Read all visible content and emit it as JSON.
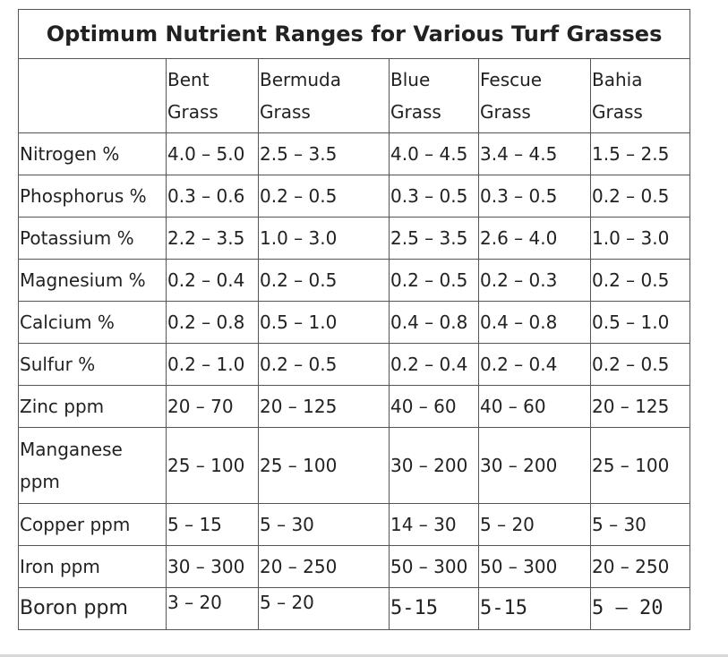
{
  "table": {
    "title": "Optimum Nutrient Ranges for Various Turf Grasses",
    "columns": [
      {
        "line1": "Bent",
        "line2": "Grass"
      },
      {
        "line1": "Bermuda",
        "line2": "Grass"
      },
      {
        "line1": "Blue",
        "line2": "Grass"
      },
      {
        "line1": "Fescue",
        "line2": "Grass"
      },
      {
        "line1": "Bahia",
        "line2": "Grass"
      }
    ],
    "rows": [
      {
        "label": "Nitrogen %",
        "values": [
          "4.0 – 5.0",
          "2.5 – 3.5",
          "4.0 – 4.5",
          "3.4 – 4.5",
          "1.5 – 2.5"
        ]
      },
      {
        "label": "Phosphorus %",
        "values": [
          "0.3 – 0.6",
          "0.2 – 0.5",
          "0.3 – 0.5",
          "0.3 – 0.5",
          "0.2 – 0.5"
        ]
      },
      {
        "label": "Potassium %",
        "values": [
          "2.2 – 3.5",
          "1.0 – 3.0",
          "2.5 – 3.5",
          "2.6 – 4.0",
          "1.0 – 3.0"
        ]
      },
      {
        "label": "Magnesium %",
        "values": [
          "0.2 – 0.4",
          "0.2 – 0.5",
          "0.2 – 0.5",
          "0.2 – 0.3",
          "0.2 – 0.5"
        ]
      },
      {
        "label": "Calcium %",
        "values": [
          "0.2 – 0.8",
          "0.5 – 1.0",
          "0.4 – 0.8",
          "0.4 – 0.8",
          "0.5 – 1.0"
        ]
      },
      {
        "label": "Sulfur %",
        "values": [
          "0.2 – 1.0",
          "0.2 – 0.5",
          "0.2 – 0.4",
          "0.2 – 0.4",
          "0.2 – 0.5"
        ]
      },
      {
        "label": "Zinc ppm",
        "values": [
          "20 – 70",
          "20 – 125",
          "40 – 60",
          "40 – 60",
          "20 – 125"
        ]
      },
      {
        "label": "Manganese ppm",
        "values": [
          "25 – 100",
          "25 – 100",
          "30 – 200",
          "30 – 200",
          "25 – 100"
        ]
      },
      {
        "label": "Copper ppm",
        "values": [
          "5 – 15",
          "5 – 30",
          "14 – 30",
          "5 – 20",
          "5 – 30"
        ]
      },
      {
        "label": "Iron ppm",
        "values": [
          "30 – 300",
          "20 – 250",
          "50 – 300",
          "50 – 300",
          "20 – 250"
        ]
      },
      {
        "label": "Boron ppm",
        "values": [
          "3 – 20",
          "5 – 20",
          "5-15",
          "5-15",
          "5 – 20"
        ]
      }
    ]
  }
}
